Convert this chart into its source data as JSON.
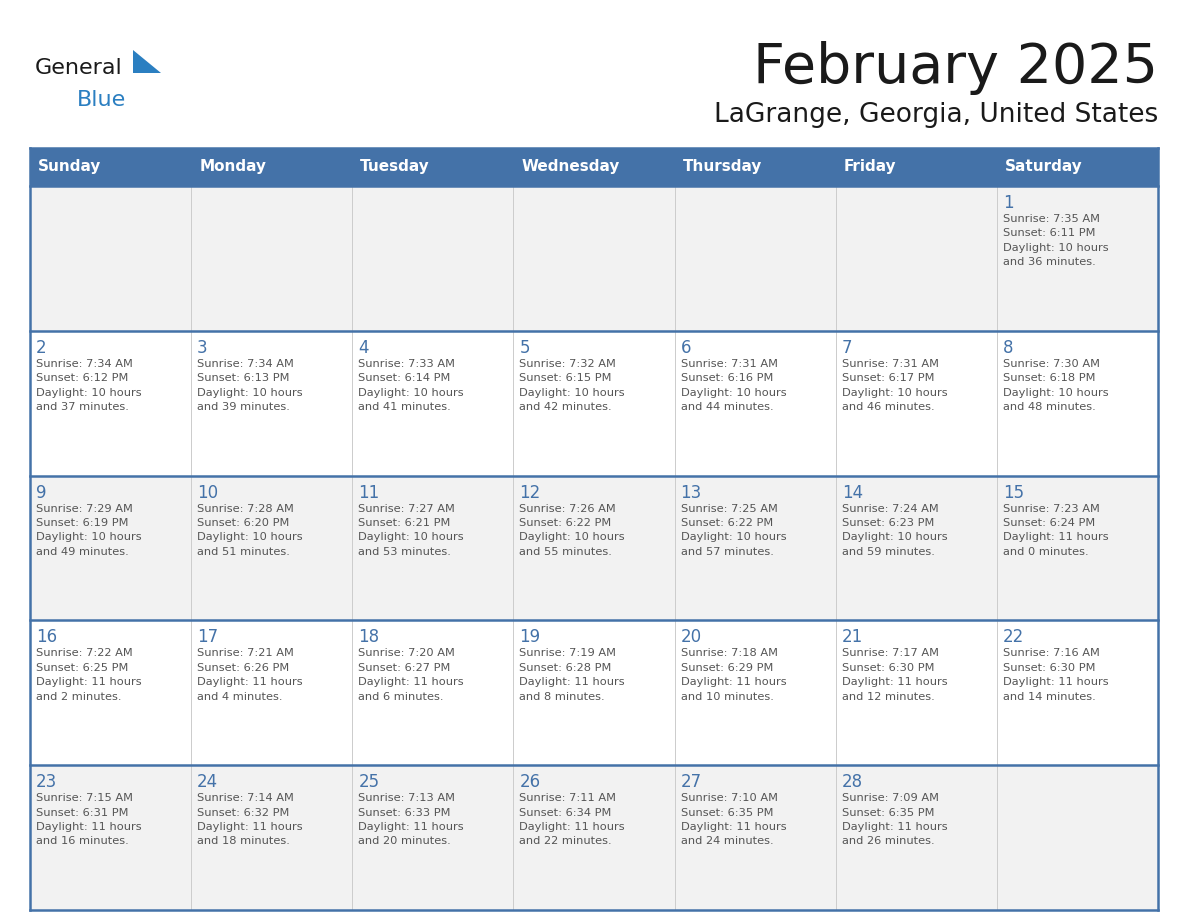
{
  "title": "February 2025",
  "subtitle": "LaGrange, Georgia, United States",
  "header_bg": "#4472A8",
  "header_text": "#FFFFFF",
  "day_names": [
    "Sunday",
    "Monday",
    "Tuesday",
    "Wednesday",
    "Thursday",
    "Friday",
    "Saturday"
  ],
  "row_bg_even": "#F2F2F2",
  "row_bg_odd": "#FFFFFF",
  "cell_border_color": "#4472A8",
  "day_num_color": "#4472A8",
  "cell_text_color": "#555555",
  "logo_general_color": "#1a1a1a",
  "logo_blue_color": "#2B7FC1",
  "logo_triangle_color": "#2B7FC1",
  "calendar": [
    [
      {
        "day": 0,
        "info": ""
      },
      {
        "day": 0,
        "info": ""
      },
      {
        "day": 0,
        "info": ""
      },
      {
        "day": 0,
        "info": ""
      },
      {
        "day": 0,
        "info": ""
      },
      {
        "day": 0,
        "info": ""
      },
      {
        "day": 1,
        "info": "Sunrise: 7:35 AM\nSunset: 6:11 PM\nDaylight: 10 hours\nand 36 minutes."
      }
    ],
    [
      {
        "day": 2,
        "info": "Sunrise: 7:34 AM\nSunset: 6:12 PM\nDaylight: 10 hours\nand 37 minutes."
      },
      {
        "day": 3,
        "info": "Sunrise: 7:34 AM\nSunset: 6:13 PM\nDaylight: 10 hours\nand 39 minutes."
      },
      {
        "day": 4,
        "info": "Sunrise: 7:33 AM\nSunset: 6:14 PM\nDaylight: 10 hours\nand 41 minutes."
      },
      {
        "day": 5,
        "info": "Sunrise: 7:32 AM\nSunset: 6:15 PM\nDaylight: 10 hours\nand 42 minutes."
      },
      {
        "day": 6,
        "info": "Sunrise: 7:31 AM\nSunset: 6:16 PM\nDaylight: 10 hours\nand 44 minutes."
      },
      {
        "day": 7,
        "info": "Sunrise: 7:31 AM\nSunset: 6:17 PM\nDaylight: 10 hours\nand 46 minutes."
      },
      {
        "day": 8,
        "info": "Sunrise: 7:30 AM\nSunset: 6:18 PM\nDaylight: 10 hours\nand 48 minutes."
      }
    ],
    [
      {
        "day": 9,
        "info": "Sunrise: 7:29 AM\nSunset: 6:19 PM\nDaylight: 10 hours\nand 49 minutes."
      },
      {
        "day": 10,
        "info": "Sunrise: 7:28 AM\nSunset: 6:20 PM\nDaylight: 10 hours\nand 51 minutes."
      },
      {
        "day": 11,
        "info": "Sunrise: 7:27 AM\nSunset: 6:21 PM\nDaylight: 10 hours\nand 53 minutes."
      },
      {
        "day": 12,
        "info": "Sunrise: 7:26 AM\nSunset: 6:22 PM\nDaylight: 10 hours\nand 55 minutes."
      },
      {
        "day": 13,
        "info": "Sunrise: 7:25 AM\nSunset: 6:22 PM\nDaylight: 10 hours\nand 57 minutes."
      },
      {
        "day": 14,
        "info": "Sunrise: 7:24 AM\nSunset: 6:23 PM\nDaylight: 10 hours\nand 59 minutes."
      },
      {
        "day": 15,
        "info": "Sunrise: 7:23 AM\nSunset: 6:24 PM\nDaylight: 11 hours\nand 0 minutes."
      }
    ],
    [
      {
        "day": 16,
        "info": "Sunrise: 7:22 AM\nSunset: 6:25 PM\nDaylight: 11 hours\nand 2 minutes."
      },
      {
        "day": 17,
        "info": "Sunrise: 7:21 AM\nSunset: 6:26 PM\nDaylight: 11 hours\nand 4 minutes."
      },
      {
        "day": 18,
        "info": "Sunrise: 7:20 AM\nSunset: 6:27 PM\nDaylight: 11 hours\nand 6 minutes."
      },
      {
        "day": 19,
        "info": "Sunrise: 7:19 AM\nSunset: 6:28 PM\nDaylight: 11 hours\nand 8 minutes."
      },
      {
        "day": 20,
        "info": "Sunrise: 7:18 AM\nSunset: 6:29 PM\nDaylight: 11 hours\nand 10 minutes."
      },
      {
        "day": 21,
        "info": "Sunrise: 7:17 AM\nSunset: 6:30 PM\nDaylight: 11 hours\nand 12 minutes."
      },
      {
        "day": 22,
        "info": "Sunrise: 7:16 AM\nSunset: 6:30 PM\nDaylight: 11 hours\nand 14 minutes."
      }
    ],
    [
      {
        "day": 23,
        "info": "Sunrise: 7:15 AM\nSunset: 6:31 PM\nDaylight: 11 hours\nand 16 minutes."
      },
      {
        "day": 24,
        "info": "Sunrise: 7:14 AM\nSunset: 6:32 PM\nDaylight: 11 hours\nand 18 minutes."
      },
      {
        "day": 25,
        "info": "Sunrise: 7:13 AM\nSunset: 6:33 PM\nDaylight: 11 hours\nand 20 minutes."
      },
      {
        "day": 26,
        "info": "Sunrise: 7:11 AM\nSunset: 6:34 PM\nDaylight: 11 hours\nand 22 minutes."
      },
      {
        "day": 27,
        "info": "Sunrise: 7:10 AM\nSunset: 6:35 PM\nDaylight: 11 hours\nand 24 minutes."
      },
      {
        "day": 28,
        "info": "Sunrise: 7:09 AM\nSunset: 6:35 PM\nDaylight: 11 hours\nand 26 minutes."
      },
      {
        "day": 0,
        "info": ""
      }
    ]
  ]
}
